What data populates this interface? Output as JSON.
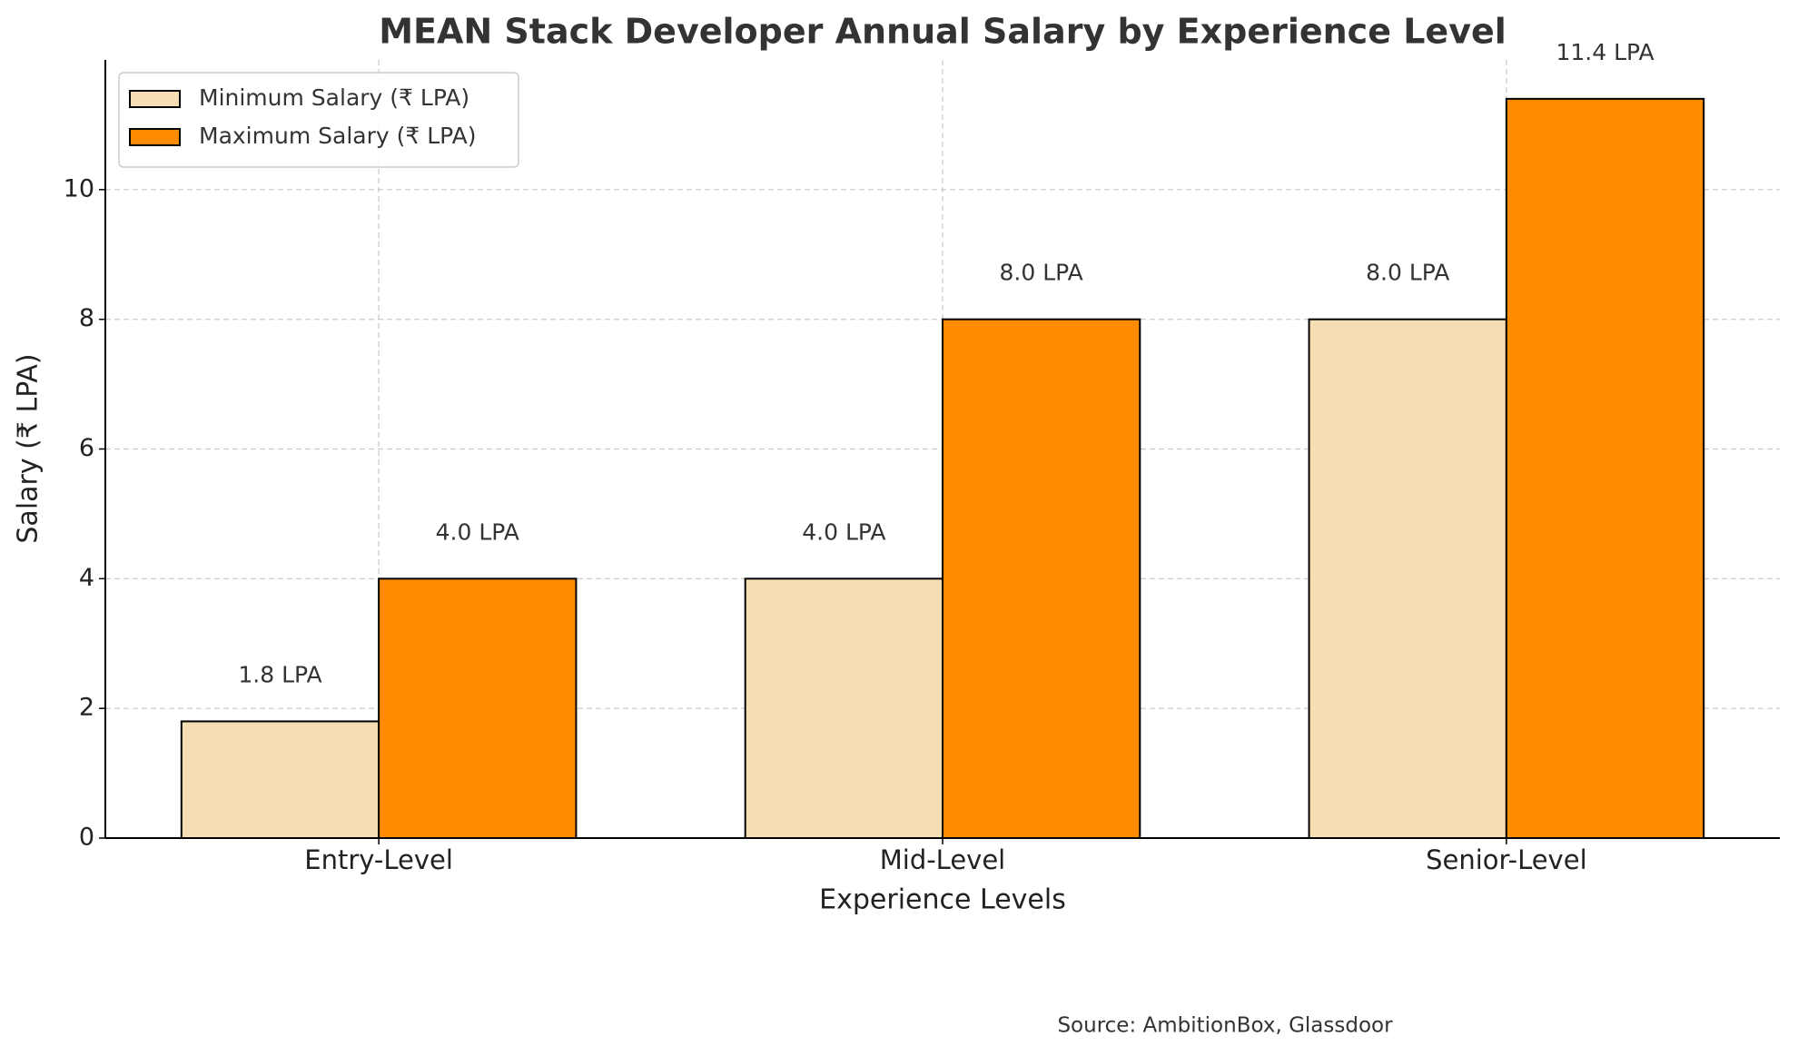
{
  "chart_data": {
    "type": "bar",
    "title": "MEAN Stack Developer Annual Salary by Experience Level",
    "x_label": "Experience Levels",
    "y_label": "Salary (₹ LPA)",
    "source": "Source: AmbitionBox, Glassdoor",
    "categories": [
      "Entry-Level",
      "Mid-Level",
      "Senior-Level"
    ],
    "series": [
      {
        "name": "Minimum Salary (₹ LPA)",
        "color": "#f5deb3",
        "values": [
          1.8,
          4.0,
          8.0
        ],
        "value_labels": [
          "1.8 LPA",
          "4.0 LPA",
          "8.0 LPA"
        ]
      },
      {
        "name": "Maximum Salary (₹ LPA)",
        "color": "#ff8c00",
        "values": [
          4.0,
          8.0,
          11.4
        ],
        "value_labels": [
          "4.0 LPA",
          "8.0 LPA",
          "11.4 LPA"
        ]
      }
    ],
    "ylim": [
      0,
      12
    ],
    "yticks": [
      0,
      2,
      4,
      6,
      8,
      10
    ],
    "grid": true,
    "legend": "upper left"
  }
}
